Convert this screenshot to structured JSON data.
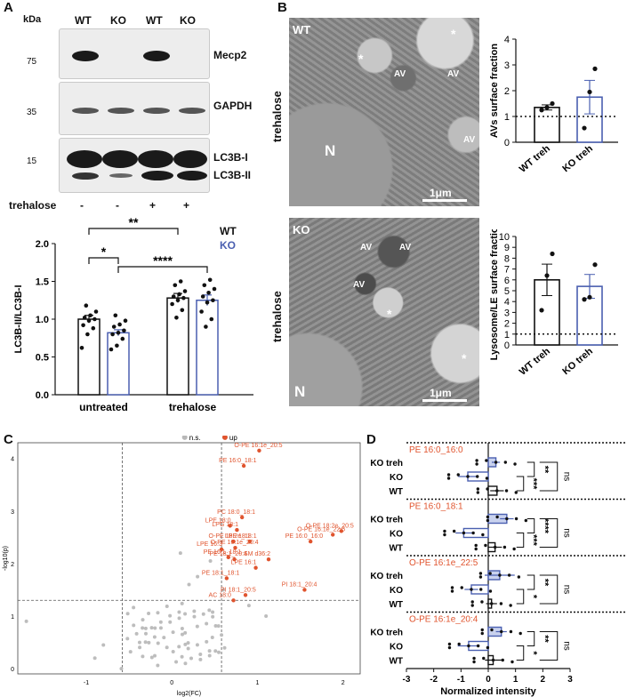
{
  "panels": {
    "A": "A",
    "B": "B",
    "C": "C",
    "D": "D"
  },
  "western": {
    "kda_label": "kDa",
    "lanes": [
      "WT",
      "KO",
      "WT",
      "KO"
    ],
    "markers": [
      "75",
      "35",
      "15"
    ],
    "proteins": [
      "Mecp2",
      "GAPDH",
      "LC3B-I",
      "LC3B-II"
    ],
    "treatment_label": "trehalose",
    "treatment_signs": [
      "-",
      "-",
      "+",
      "+"
    ]
  },
  "chart_data": [
    {
      "type": "bar",
      "panel": "A",
      "ylabel": "LC3B-II/LC3B-I",
      "ylim": [
        0,
        2.0
      ],
      "yticks": [
        "0.0",
        "0.5",
        "1.0",
        "1.5",
        "2.0"
      ],
      "groups": [
        "untreated",
        "trehalose"
      ],
      "legend": [
        {
          "name": "WT",
          "color": "#111111"
        },
        {
          "name": "KO",
          "color": "#4a5fb0"
        }
      ],
      "series": [
        {
          "name": "WT",
          "values": [
            1.0,
            1.28
          ],
          "errors": [
            0.05,
            0.06
          ],
          "points": [
            [
              0.62,
              0.8,
              0.88,
              0.92,
              0.98,
              1.0,
              1.02,
              1.05,
              1.1,
              1.18
            ],
            [
              1.02,
              1.12,
              1.2,
              1.25,
              1.28,
              1.3,
              1.33,
              1.37,
              1.45,
              1.5
            ]
          ]
        },
        {
          "name": "KO",
          "values": [
            0.82,
            1.25
          ],
          "errors": [
            0.04,
            0.07
          ],
          "points": [
            [
              0.6,
              0.65,
              0.74,
              0.8,
              0.82,
              0.85,
              0.9,
              0.93,
              0.98,
              1.05
            ],
            [
              0.9,
              1.0,
              1.1,
              1.22,
              1.25,
              1.3,
              1.35,
              1.4,
              1.45,
              1.52
            ]
          ]
        }
      ],
      "significance": [
        "**",
        "*",
        "****"
      ]
    },
    {
      "type": "bar",
      "panel": "B-top",
      "ylabel": "AVs surface fraction",
      "ylim": [
        0,
        4
      ],
      "yticks": [
        "0",
        "1",
        "2",
        "3",
        "4"
      ],
      "categories": [
        "WT treh",
        "KO treh"
      ],
      "values": [
        1.35,
        1.75
      ],
      "errors": [
        0.1,
        0.65
      ],
      "points": [
        [
          1.25,
          1.35,
          1.5
        ],
        [
          0.55,
          1.95,
          2.85
        ]
      ],
      "baseline": 1
    },
    {
      "type": "bar",
      "panel": "B-bottom",
      "ylabel": "Lysosome/LE surface fraction",
      "ylim": [
        0,
        10
      ],
      "yticks": [
        "0",
        "1",
        "2",
        "3",
        "4",
        "5",
        "6",
        "7",
        "8",
        "9",
        "10"
      ],
      "categories": [
        "WT treh",
        "KO treh"
      ],
      "values": [
        6.0,
        5.4
      ],
      "errors": [
        1.45,
        1.1
      ],
      "points": [
        [
          3.2,
          6.4,
          8.4
        ],
        [
          4.2,
          4.4,
          7.4
        ]
      ],
      "baseline": 1
    },
    {
      "type": "scatter",
      "panel": "C",
      "xlabel": "log2(FC)",
      "ylabel": "-log10(p)",
      "xlim": [
        -1.8,
        2.2
      ],
      "ylim": [
        -0.1,
        4.3
      ],
      "xticks": [
        "-1",
        "0",
        "1",
        "2"
      ],
      "yticks": [
        "0",
        "1",
        "2",
        "3",
        "4"
      ],
      "legend": [
        {
          "name": "n.s.",
          "color": "#b8b8b8"
        },
        {
          "name": "up",
          "color": "#e0542e"
        }
      ],
      "up_points": [
        {
          "label": "O-PE 16:1e_20:5",
          "x": 1.02,
          "y": 4.15
        },
        {
          "label": "PE 16:0_18:1",
          "x": 0.84,
          "y": 3.86
        },
        {
          "label": "PC 18:0_18:1",
          "x": 0.82,
          "y": 2.88
        },
        {
          "label": "O-PE 18:2e_20:5",
          "x": 1.98,
          "y": 2.62
        },
        {
          "label": "O-PE 16:1e_22:5",
          "x": 1.88,
          "y": 2.55
        },
        {
          "label": "PE 16:0_16:0",
          "x": 1.62,
          "y": 2.42
        },
        {
          "label": "LPE 18:0",
          "x": 0.68,
          "y": 2.72
        },
        {
          "label": "LPG 18:1",
          "x": 0.76,
          "y": 2.64
        },
        {
          "label": "O-PE 18:2e_18:1",
          "x": 0.72,
          "y": 2.42
        },
        {
          "label": "LPE 18:1",
          "x": 0.91,
          "y": 2.42
        },
        {
          "label": "LPE 16:3",
          "x": 0.58,
          "y": 2.27
        },
        {
          "label": "O-PE 16:1e_20:4",
          "x": 0.74,
          "y": 2.3
        },
        {
          "label": "PE 16:1_18:1",
          "x": 0.66,
          "y": 2.12
        },
        {
          "label": "PE 18:1_20:4",
          "x": 0.73,
          "y": 2.08
        },
        {
          "label": "SM d36:2",
          "x": 1.13,
          "y": 2.08
        },
        {
          "label": "LPE 16:1",
          "x": 0.98,
          "y": 1.92
        },
        {
          "label": "PE 18:1_18:1",
          "x": 0.64,
          "y": 1.72
        },
        {
          "label": "PI 18:1_20:5",
          "x": 0.86,
          "y": 1.4
        },
        {
          "label": "PI 18:1_20:4",
          "x": 1.55,
          "y": 1.5
        },
        {
          "label": "AC 18:0",
          "x": 0.72,
          "y": 1.3
        }
      ],
      "thresholds": {
        "x": [
          -0.58,
          0.58
        ],
        "y": 1.3
      }
    },
    {
      "type": "bar",
      "panel": "D",
      "xlabel": "Normalized intensity",
      "xlim": [
        -3,
        3
      ],
      "xticks": [
        "-3",
        "-2",
        "-1",
        "0",
        "1",
        "2",
        "3"
      ],
      "rows": [
        "KO treh",
        "KO",
        "WT"
      ],
      "subpanels": [
        {
          "title": "PE 16:0_16:0",
          "values": [
            0.28,
            -0.75,
            0.32
          ],
          "errors": [
            0.15,
            0.35,
            0.25
          ],
          "sig": [
            "***",
            "**",
            "ns"
          ]
        },
        {
          "title": "PE 16:0_18:1",
          "values": [
            0.68,
            -0.9,
            0.25
          ],
          "errors": [
            0.25,
            0.3,
            0.25
          ],
          "sig": [
            "***",
            "****",
            "ns"
          ]
        },
        {
          "title": "O-PE 16:1e_22:5",
          "values": [
            0.42,
            -0.62,
            0.12
          ],
          "errors": [
            0.55,
            0.25,
            0.2
          ],
          "sig": [
            "*",
            "**",
            "ns"
          ]
        },
        {
          "title": "O-PE 16:1e_20:4",
          "values": [
            0.48,
            -0.72,
            0.18
          ],
          "errors": [
            0.2,
            0.4,
            0.3
          ],
          "sig": [
            "*",
            "**",
            "ns"
          ]
        }
      ]
    }
  ],
  "em": {
    "top": {
      "corner": "WT",
      "side": "trehalose",
      "labels": [
        "AV",
        "AV",
        "AV",
        "*",
        "*",
        "N"
      ],
      "scale": "1μm"
    },
    "bottom": {
      "corner": "KO",
      "side": "trehalose",
      "labels": [
        "AV",
        "AV",
        "AV",
        "*",
        "*",
        "N"
      ],
      "scale": "1μm"
    }
  }
}
